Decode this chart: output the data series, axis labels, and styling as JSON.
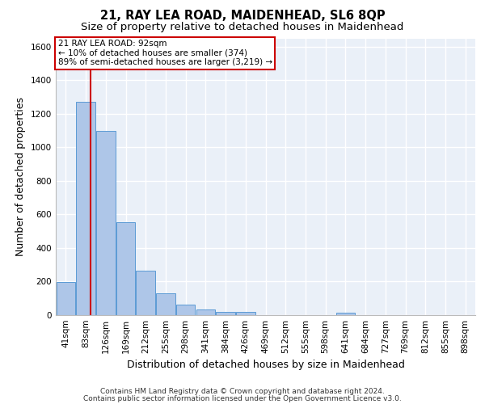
{
  "title1": "21, RAY LEA ROAD, MAIDENHEAD, SL6 8QP",
  "title2": "Size of property relative to detached houses in Maidenhead",
  "xlabel": "Distribution of detached houses by size in Maidenhead",
  "ylabel": "Number of detached properties",
  "categories": [
    "41sqm",
    "83sqm",
    "126sqm",
    "169sqm",
    "212sqm",
    "255sqm",
    "298sqm",
    "341sqm",
    "384sqm",
    "426sqm",
    "469sqm",
    "512sqm",
    "555sqm",
    "598sqm",
    "641sqm",
    "684sqm",
    "727sqm",
    "769sqm",
    "812sqm",
    "855sqm",
    "898sqm"
  ],
  "values": [
    198,
    1270,
    1100,
    555,
    265,
    130,
    62,
    35,
    20,
    20,
    0,
    0,
    0,
    0,
    15,
    0,
    0,
    0,
    0,
    0,
    0
  ],
  "bar_color": "#aec6e8",
  "bar_edge_color": "#5b9bd5",
  "background_color": "#eaf0f8",
  "grid_color": "#ffffff",
  "vline_x": 1.22,
  "vline_color": "#cc0000",
  "annotation_line1": "21 RAY LEA ROAD: 92sqm",
  "annotation_line2": "← 10% of detached houses are smaller (374)",
  "annotation_line3": "89% of semi-detached houses are larger (3,219) →",
  "annotation_box_color": "#cc0000",
  "ylim": [
    0,
    1650
  ],
  "yticks": [
    0,
    200,
    400,
    600,
    800,
    1000,
    1200,
    1400,
    1600
  ],
  "footer1": "Contains HM Land Registry data © Crown copyright and database right 2024.",
  "footer2": "Contains public sector information licensed under the Open Government Licence v3.0.",
  "title1_fontsize": 10.5,
  "title2_fontsize": 9.5,
  "axis_label_fontsize": 9,
  "tick_fontsize": 7.5,
  "footer_fontsize": 6.5,
  "annotation_fontsize": 7.5
}
